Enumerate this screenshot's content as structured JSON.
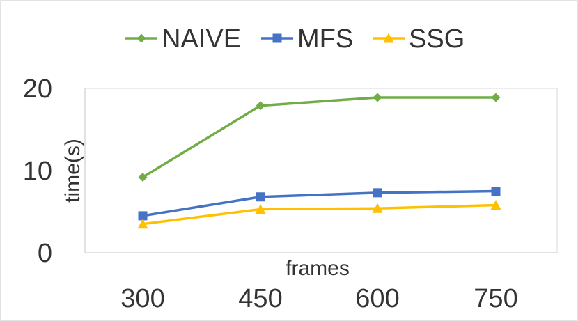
{
  "chart_data": {
    "type": "line",
    "title": "",
    "xlabel": "frames",
    "ylabel": "time(s)",
    "categories": [
      "300",
      "450",
      "600",
      "750"
    ],
    "ylim": [
      0,
      20
    ],
    "yticks": [
      0,
      10,
      20
    ],
    "grid": false,
    "legend_position": "top",
    "series": [
      {
        "name": "NAIVE",
        "values": [
          9.2,
          17.9,
          18.9,
          18.9
        ],
        "color": "#70AD47",
        "marker": "diamond"
      },
      {
        "name": "MFS",
        "values": [
          4.5,
          6.8,
          7.3,
          7.5
        ],
        "color": "#4472C4",
        "marker": "square"
      },
      {
        "name": "SSG",
        "values": [
          3.5,
          5.3,
          5.4,
          5.8
        ],
        "color": "#FFC000",
        "marker": "triangle"
      }
    ]
  }
}
